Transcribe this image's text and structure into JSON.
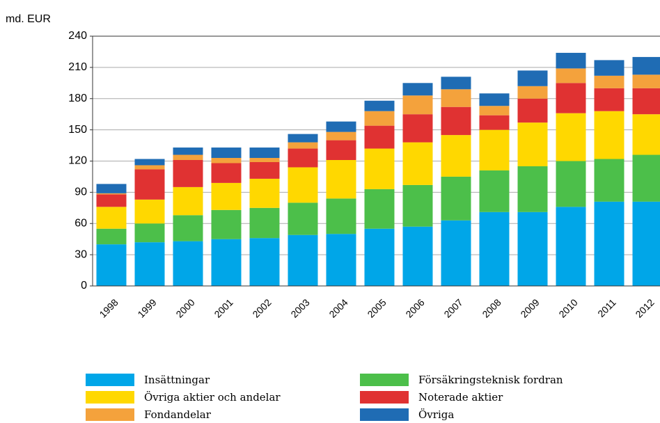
{
  "chart_data": {
    "type": "stacked-bar",
    "y_label": "md. EUR",
    "categories": [
      "1998",
      "1999",
      "2000",
      "2001",
      "2002",
      "2003",
      "2004",
      "2005",
      "2006",
      "2007",
      "2008",
      "2009",
      "2010",
      "2011",
      "2012"
    ],
    "series": [
      {
        "name": "Insättningar",
        "color": "#00a6e8",
        "values": [
          40,
          42,
          43,
          45,
          46,
          49,
          50,
          55,
          57,
          63,
          71,
          71,
          76,
          81,
          81
        ]
      },
      {
        "name": "Försäkringsteknisk fordran",
        "color": "#4cbf4a",
        "values": [
          15,
          18,
          25,
          28,
          29,
          31,
          34,
          38,
          40,
          42,
          40,
          44,
          44,
          41,
          45
        ]
      },
      {
        "name": "Övriga aktier och andelar",
        "color": "#ffd800",
        "values": [
          21,
          23,
          27,
          26,
          28,
          34,
          37,
          39,
          41,
          40,
          39,
          42,
          46,
          46,
          39
        ]
      },
      {
        "name": "Noterade aktier",
        "color": "#e03232",
        "values": [
          12,
          29,
          26,
          19,
          16,
          18,
          19,
          22,
          27,
          27,
          14,
          23,
          29,
          22,
          25
        ]
      },
      {
        "name": "Fondandelar",
        "color": "#f4a23c",
        "values": [
          1,
          4,
          5,
          5,
          4,
          6,
          8,
          14,
          18,
          17,
          9,
          12,
          14,
          12,
          13
        ]
      },
      {
        "name": "Övriga",
        "color": "#1f6cb4",
        "values": [
          9,
          6,
          7,
          10,
          10,
          8,
          10,
          10,
          12,
          12,
          12,
          15,
          15,
          15,
          17
        ]
      }
    ],
    "ylim": [
      0,
      240
    ],
    "yticks": [
      0,
      30,
      60,
      90,
      120,
      150,
      180,
      210,
      240
    ],
    "grid": true
  }
}
